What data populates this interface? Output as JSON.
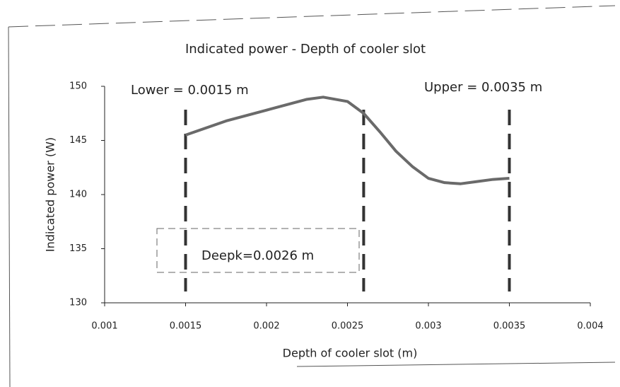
{
  "chart_data": {
    "type": "line",
    "title": "Indicated power - Depth of cooler slot",
    "x_label": "Depth of cooler slot (m)",
    "y_label": "Indicated power (W)",
    "x": [
      0.0015,
      0.00175,
      0.002,
      0.00225,
      0.00235,
      0.0025,
      0.0026,
      0.0027,
      0.0028,
      0.0029,
      0.003,
      0.0031,
      0.0032,
      0.0033,
      0.0034,
      0.0035
    ],
    "series": [
      {
        "color": "#6a6a6a",
        "values": [
          145.5,
          146.8,
          147.8,
          148.8,
          149,
          148.6,
          147.5,
          145.8,
          144,
          142.6,
          141.5,
          141.1,
          141,
          141.2,
          141.4,
          141.5
        ]
      }
    ],
    "xlim": [
      0.001,
      0.004
    ],
    "xticks": [
      0.001,
      0.0015,
      0.002,
      0.0025,
      0.003,
      0.0035,
      0.004
    ],
    "ylim": [
      130,
      150
    ],
    "yticks": [
      130,
      135,
      140,
      145,
      150
    ],
    "reference_lines": [
      0.0015,
      0.0026,
      0.0035
    ],
    "annotations": [
      "Lower = 0.0015 m",
      "Deepk=0.0026 m",
      "Upper = 0.0035 m"
    ]
  }
}
